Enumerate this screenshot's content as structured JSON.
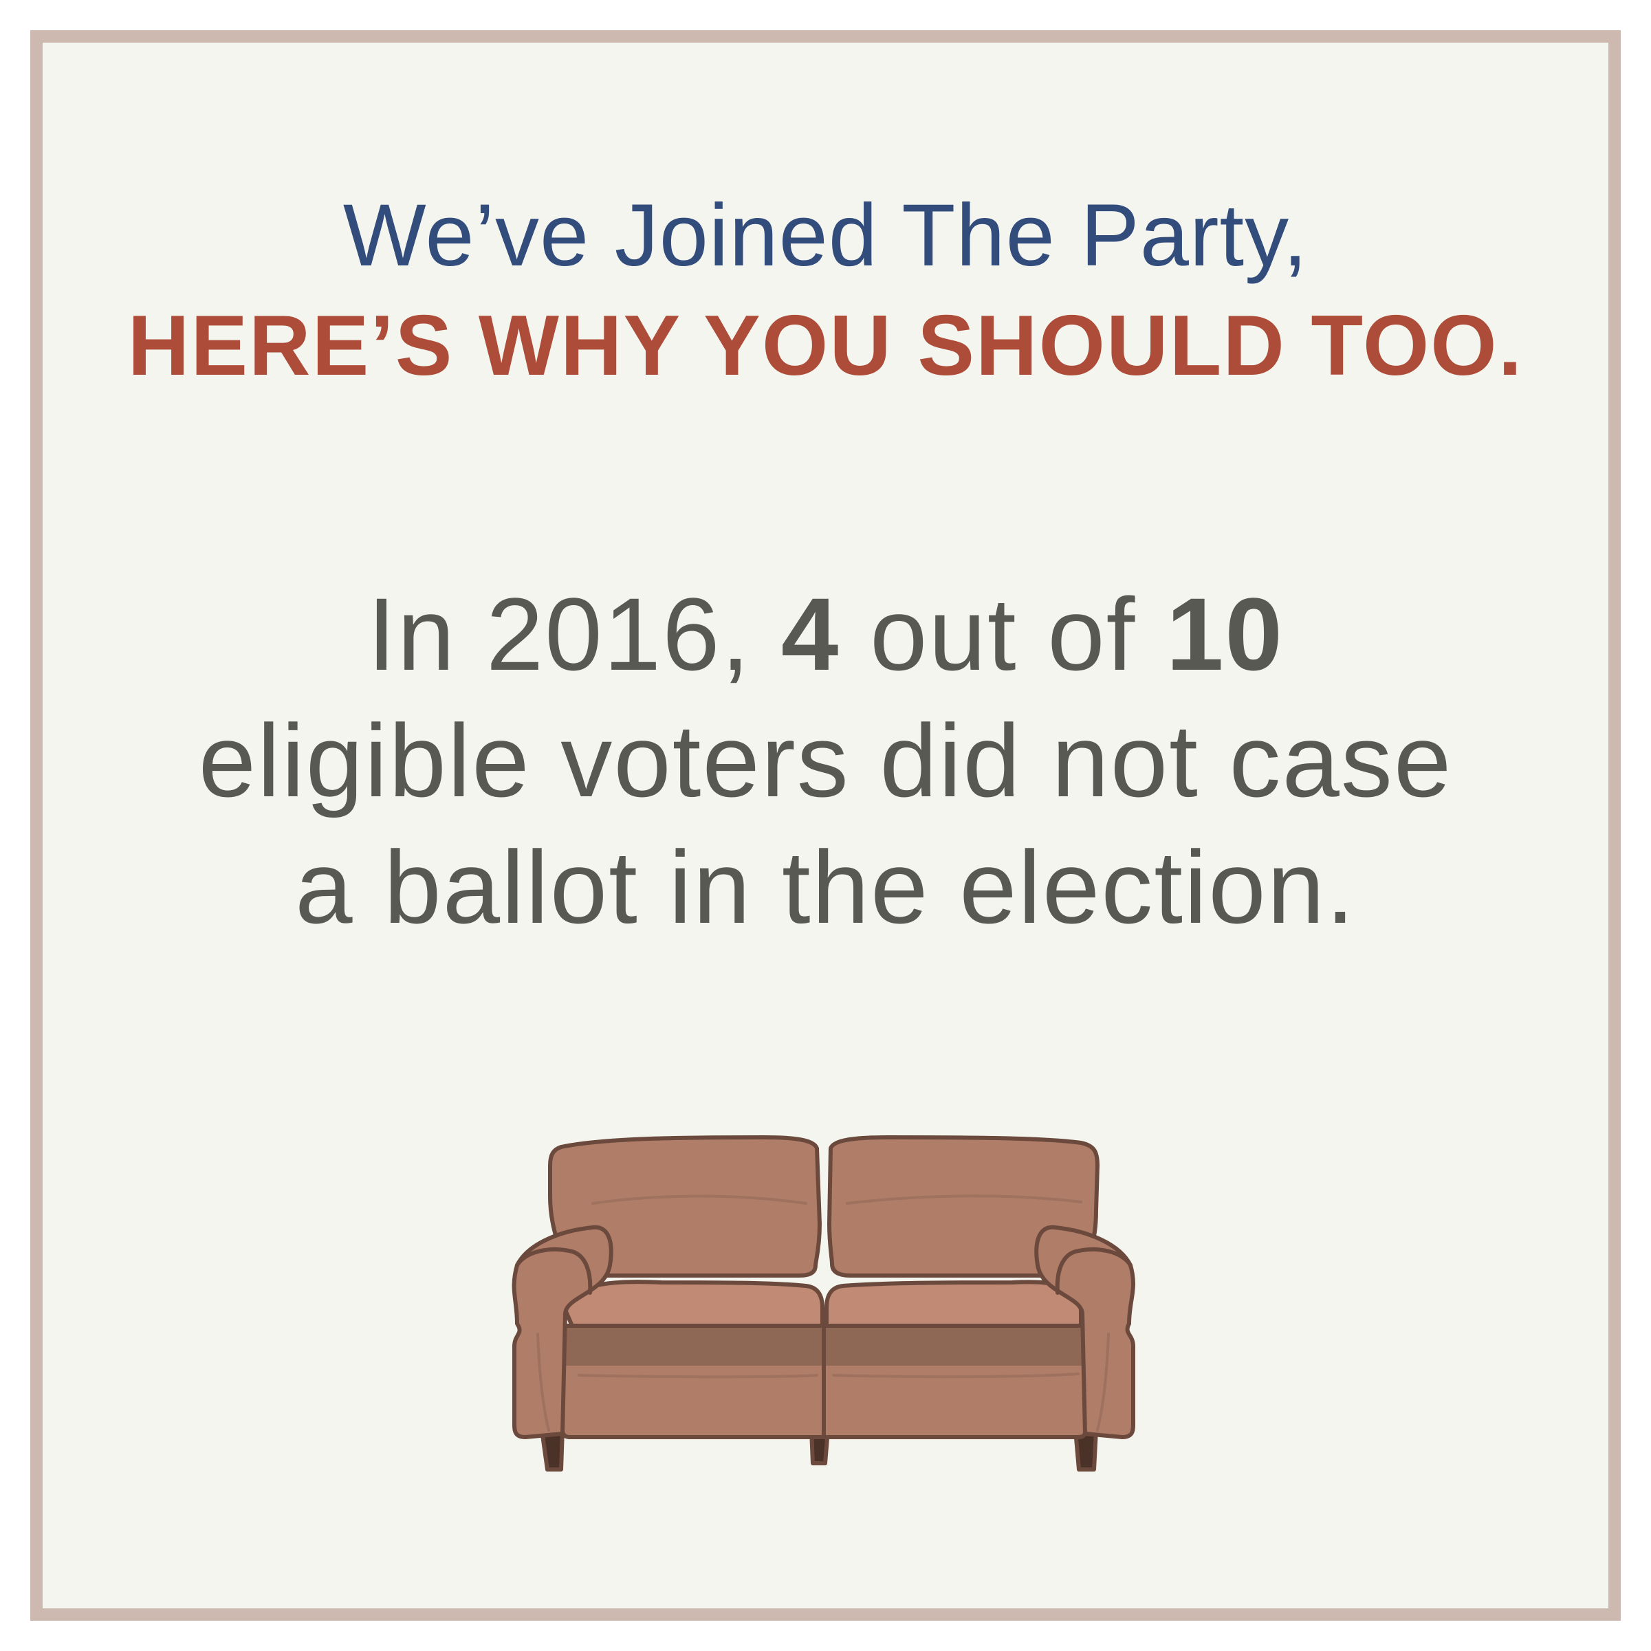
{
  "colors": {
    "border": "#cdb9b0",
    "background": "#f4f5ef",
    "headline_blue": "#324c7c",
    "headline_red": "#ad4c39",
    "body_text": "#595953",
    "couch_fill": "#b07d68",
    "couch_light": "#c08a74",
    "couch_shadow": "#8f6855",
    "couch_outline": "#6b4a3d",
    "couch_legs": "#4a3229"
  },
  "headline": {
    "line1": "We’ve Joined The Party,",
    "line2": "HERE’S WHY YOU SHOULD TOO."
  },
  "statement": {
    "line1_prefix": "In 2016, ",
    "line1_num1": "4",
    "line1_mid": " out of ",
    "line1_num2": "10",
    "line2": "eligible voters did not case",
    "line3": "a ballot in the election."
  },
  "illustration": {
    "icon": "couch-icon"
  }
}
